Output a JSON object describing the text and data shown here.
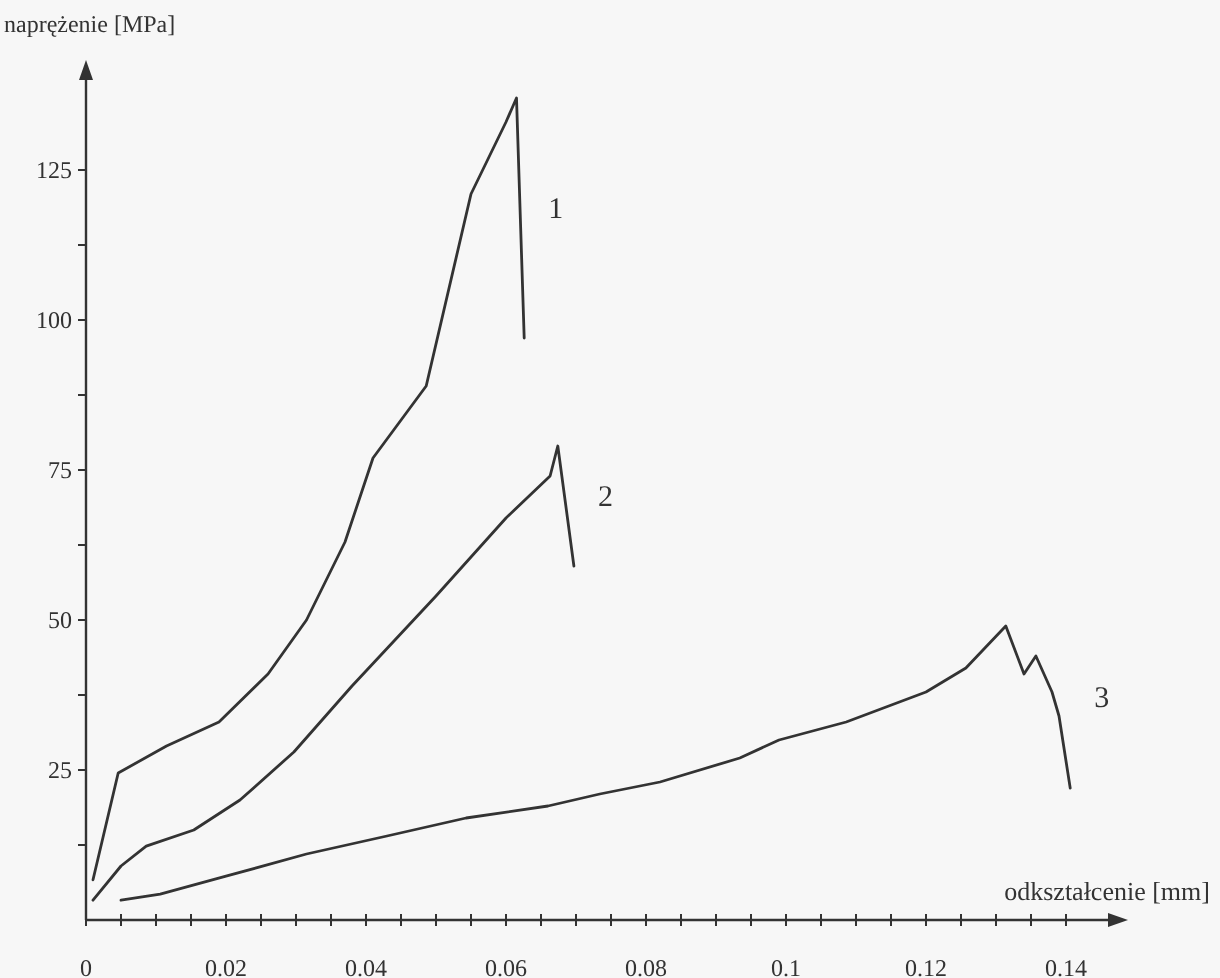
{
  "chart_data": {
    "type": "line",
    "xlabel": "odkształcenie [mm]",
    "ylabel": "naprężenie [MPa]",
    "xlim": [
      0,
      0.146
    ],
    "ylim": [
      0,
      140
    ],
    "xticks": [
      0,
      {
        "value": 0.005,
        "label": null
      },
      {
        "value": 0.01,
        "label": null
      },
      {
        "value": 0.015,
        "label": null
      },
      0.02,
      {
        "value": 0.025,
        "label": null
      },
      {
        "value": 0.03,
        "label": null
      },
      {
        "value": 0.035,
        "label": null
      },
      0.04,
      {
        "value": 0.045,
        "label": null
      },
      {
        "value": 0.05,
        "label": null
      },
      {
        "value": 0.055,
        "label": null
      },
      0.06,
      {
        "value": 0.065,
        "label": null
      },
      {
        "value": 0.07,
        "label": null
      },
      {
        "value": 0.075,
        "label": null
      },
      0.08,
      {
        "value": 0.085,
        "label": null
      },
      {
        "value": 0.09,
        "label": null
      },
      {
        "value": 0.095,
        "label": null
      },
      0.1,
      {
        "value": 0.105,
        "label": null
      },
      {
        "value": 0.11,
        "label": null
      },
      {
        "value": 0.115,
        "label": null
      },
      0.12,
      {
        "value": 0.125,
        "label": null
      },
      {
        "value": 0.13,
        "label": null
      },
      {
        "value": 0.135,
        "label": null
      },
      0.14
    ],
    "yticks": [
      {
        "value": 12.5,
        "label": null
      },
      25,
      {
        "value": 37.5,
        "label": null
      },
      50,
      {
        "value": 62.5,
        "label": null
      },
      75,
      {
        "value": 87.5,
        "label": null
      },
      100,
      {
        "value": 112.5,
        "label": null
      },
      125
    ],
    "series": [
      {
        "name": "1",
        "color": "#333333",
        "x": [
          0.001,
          0.0046,
          0.0115,
          0.019,
          0.026,
          0.0315,
          0.037,
          0.041,
          0.0486,
          0.055,
          0.06,
          0.0615,
          0.0626
        ],
        "values": [
          6.7,
          24.5,
          29,
          33,
          41,
          50,
          63,
          77,
          89,
          121,
          133,
          137,
          97
        ]
      },
      {
        "name": "2",
        "color": "#333333",
        "x": [
          0.001,
          0.005,
          0.0086,
          0.0154,
          0.022,
          0.0297,
          0.038,
          0.05,
          0.06,
          0.0663,
          0.0674,
          0.0697
        ],
        "values": [
          3.3,
          9,
          12.3,
          15,
          20,
          28,
          39,
          54,
          67,
          74,
          79,
          59
        ]
      },
      {
        "name": "3",
        "color": "#333333",
        "x": [
          0.005,
          0.0106,
          0.02,
          0.0315,
          0.043,
          0.0543,
          0.066,
          0.0734,
          0.082,
          0.0934,
          0.099,
          0.1086,
          0.12,
          0.1257,
          0.1314,
          0.134,
          0.1357,
          0.138,
          0.139,
          0.1406
        ],
        "values": [
          3.3,
          4.3,
          7.3,
          11,
          14,
          17,
          19,
          21,
          23,
          27,
          30,
          33,
          38,
          42,
          49,
          41,
          44,
          38,
          34,
          22
        ]
      }
    ]
  }
}
